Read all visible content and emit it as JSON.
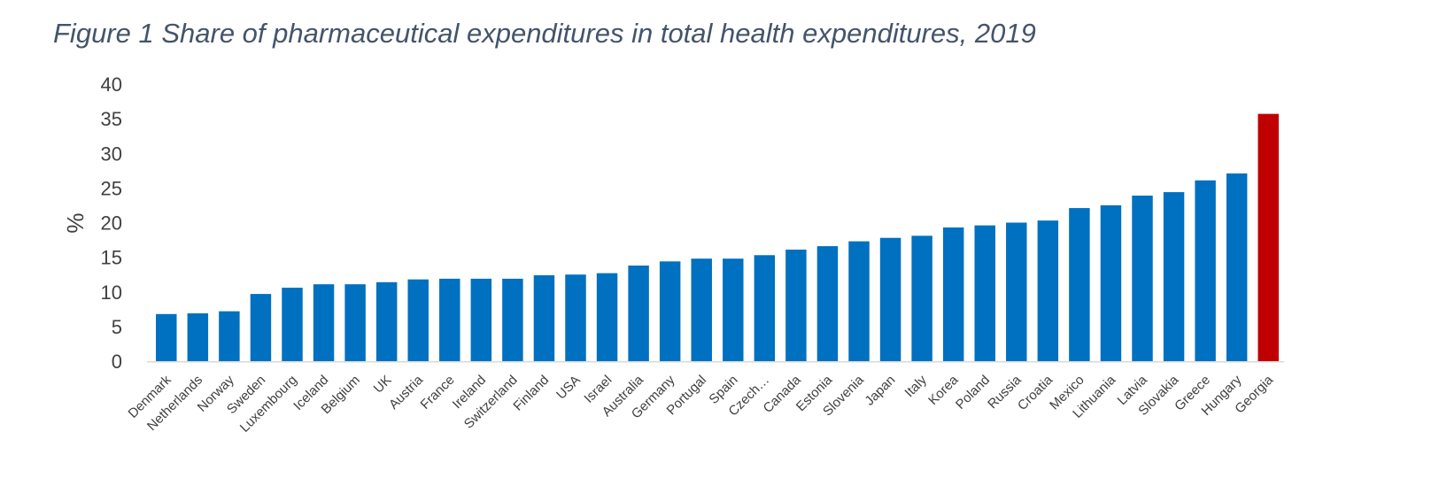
{
  "chart_data": {
    "type": "bar",
    "title": "Figure 1 Share of pharmaceutical expenditures in total health expenditures, 2019",
    "xlabel": "",
    "ylabel": "%",
    "ylim": [
      0,
      40
    ],
    "yticks": [
      0,
      5,
      10,
      15,
      20,
      25,
      30,
      35,
      40
    ],
    "grid": false,
    "legend": "none",
    "colors": {
      "default": "#0070C0",
      "highlight": "#C00000"
    },
    "highlight_category": "Georgia",
    "categories": [
      "Denmark",
      "Netherlands",
      "Norway",
      "Sweden",
      "Luxembourg",
      "Iceland",
      "Belgium",
      "UK",
      "Austria",
      "France",
      "Ireland",
      "Switzerland",
      "Finland",
      "USA",
      "Israel",
      "Australia",
      "Germany",
      "Portugal",
      "Spain",
      "Czech…",
      "Canada",
      "Estonia",
      "Slovenia",
      "Japan",
      "Italy",
      "Korea",
      "Poland",
      "Russia",
      "Croatia",
      "Mexico",
      "Lithuania",
      "Latvia",
      "Slovakia",
      "Greece",
      "Hungary",
      "Georgia"
    ],
    "values": [
      6.8,
      6.9,
      7.2,
      9.7,
      10.6,
      11.1,
      11.1,
      11.4,
      11.8,
      11.9,
      11.9,
      11.9,
      12.4,
      12.5,
      12.7,
      13.8,
      14.4,
      14.8,
      14.8,
      15.3,
      16.1,
      16.6,
      17.3,
      17.8,
      18.1,
      19.3,
      19.6,
      20.0,
      20.3,
      22.1,
      22.5,
      23.9,
      24.4,
      26.1,
      27.1,
      35.7
    ]
  }
}
